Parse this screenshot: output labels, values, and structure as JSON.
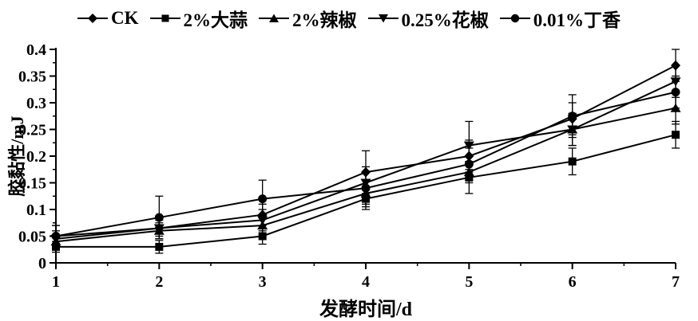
{
  "chart_data": {
    "type": "line",
    "title": "",
    "xlabel": "发酵时间/d",
    "ylabel": "胶黏性/mJ",
    "x": [
      1,
      2,
      3,
      4,
      5,
      6,
      7
    ],
    "ylim": [
      0,
      0.4
    ],
    "y_tick_step": 0.05,
    "y_tick_labels": [
      "0",
      "0.05",
      "0.1",
      "0.15",
      "0.2",
      "0.25",
      "0.3",
      "0.35",
      "0.4"
    ],
    "grid": false,
    "legend_position": "top",
    "line_color": "#000000",
    "series": [
      {
        "name": "CK",
        "marker": "diamond",
        "color": "#000000",
        "values": [
          0.05,
          0.065,
          0.09,
          0.17,
          0.2,
          0.27,
          0.37
        ],
        "errors": [
          0.02,
          0.015,
          0.02,
          0.04,
          0.03,
          0.03,
          0.03
        ]
      },
      {
        "name": "2%大蒜",
        "marker": "square",
        "color": "#000000",
        "values": [
          0.03,
          0.03,
          0.05,
          0.12,
          0.16,
          0.19,
          0.24
        ],
        "errors": [
          0.01,
          0.012,
          0.015,
          0.02,
          0.03,
          0.025,
          0.025
        ]
      },
      {
        "name": "2%辣椒",
        "marker": "triangle-up",
        "color": "#000000",
        "values": [
          0.04,
          0.06,
          0.07,
          0.13,
          0.17,
          0.25,
          0.29
        ],
        "errors": [
          0.012,
          0.015,
          0.02,
          0.025,
          0.02,
          0.03,
          0.03
        ]
      },
      {
        "name": "0.25%花椒",
        "marker": "triangle-down",
        "color": "#000000",
        "values": [
          0.045,
          0.065,
          0.08,
          0.15,
          0.22,
          0.25,
          0.34
        ],
        "errors": [
          0.015,
          0.02,
          0.02,
          0.03,
          0.045,
          0.03,
          0.03
        ]
      },
      {
        "name": "0.01%丁香",
        "marker": "circle",
        "color": "#000000",
        "values": [
          0.05,
          0.085,
          0.12,
          0.14,
          0.185,
          0.275,
          0.32
        ],
        "errors": [
          0.02,
          0.04,
          0.035,
          0.03,
          0.03,
          0.04,
          0.03
        ]
      }
    ]
  }
}
